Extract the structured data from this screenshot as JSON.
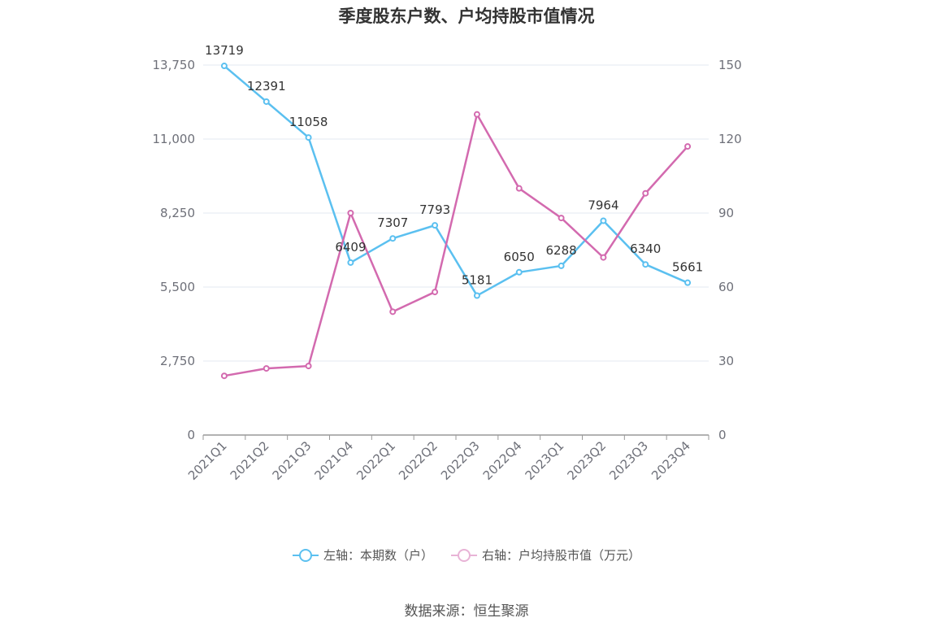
{
  "title": "季度股东户数、户均持股市值情况",
  "source": "数据来源：恒生聚源",
  "colors": {
    "series1": "#5bc0f0",
    "series2": "#d36aaf",
    "grid": "#e3e8f0",
    "axis": "#999999"
  },
  "chart_data": {
    "type": "line",
    "title": "季度股东户数、户均持股市值情况",
    "categories": [
      "2021Q1",
      "2021Q2",
      "2021Q3",
      "2021Q4",
      "2022Q1",
      "2022Q2",
      "2022Q3",
      "2022Q4",
      "2023Q1",
      "2023Q2",
      "2023Q3",
      "2023Q4"
    ],
    "y_left": {
      "range": [
        0,
        13750
      ],
      "ticks": [
        "0",
        "2,750",
        "5,500",
        "8,250",
        "11,000",
        "13,750"
      ]
    },
    "y_right": {
      "range": [
        0,
        150
      ],
      "ticks": [
        "0",
        "30",
        "60",
        "90",
        "120",
        "150"
      ]
    },
    "series": [
      {
        "name": "左轴：本期数（户）",
        "axis": "left",
        "values": [
          13719,
          12391,
          11058,
          6409,
          7307,
          7793,
          5181,
          6050,
          6288,
          7964,
          6340,
          5661
        ],
        "labels": [
          "13719",
          "12391",
          "11058",
          "6409",
          "7307",
          "7793",
          "5181",
          "6050",
          "6288",
          "7964",
          "6340",
          "5661"
        ]
      },
      {
        "name": "右轴：户均持股市值（万元）",
        "axis": "right",
        "values": [
          24,
          27,
          28,
          90,
          50,
          58,
          130,
          100,
          88,
          72,
          98,
          117
        ]
      }
    ],
    "grid": true,
    "legend_position": "bottom"
  }
}
